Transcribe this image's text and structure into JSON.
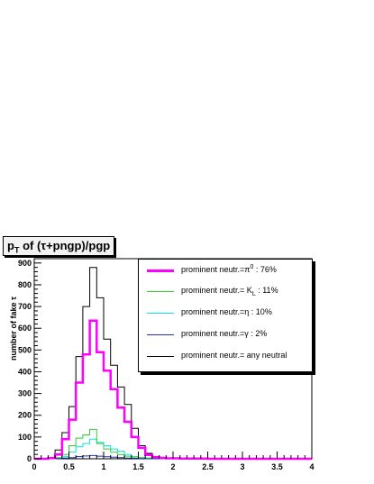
{
  "title": {
    "prefix": "p",
    "subscript": "T",
    "suffix": " of (τ+pngp)/pgp"
  },
  "chart_data": {
    "type": "line",
    "style": "step histogram",
    "title": "pT of (τ+pngp)/pgp",
    "xlabel": "",
    "ylabel": "number of fake τ",
    "xlim": [
      0,
      4
    ],
    "ylim": [
      0,
      920
    ],
    "bin_width": 0.1,
    "x_bin_edges_start": 0,
    "xticks": [
      "0",
      "0.5",
      "1",
      "1.5",
      "2",
      "2.5",
      "3",
      "3.5",
      "4"
    ],
    "yticks": [
      "0",
      "100",
      "200",
      "300",
      "400",
      "500",
      "600",
      "700",
      "800",
      "900"
    ],
    "grid": false,
    "legend_position": "top-right",
    "series": [
      {
        "name": "prominent neutr.= any neutral",
        "color": "#000000",
        "values": [
          0,
          0,
          5,
          40,
          120,
          240,
          470,
          700,
          880,
          740,
          550,
          430,
          330,
          250,
          140,
          60,
          25,
          10,
          5,
          3,
          3,
          2,
          1,
          1,
          1,
          1,
          0,
          0,
          0,
          0,
          0,
          0,
          0,
          0,
          0,
          0,
          0,
          0,
          0,
          0
        ]
      },
      {
        "name": "prominent neutr.=π⁰ : 76%",
        "color": "#ff00ff",
        "values": [
          0,
          0,
          3,
          20,
          90,
          180,
          350,
          480,
          635,
          490,
          405,
          320,
          235,
          170,
          100,
          50,
          18,
          8,
          4,
          2,
          2,
          1,
          1,
          1,
          1,
          0,
          0,
          0,
          0,
          0,
          0,
          0,
          0,
          0,
          0,
          0,
          0,
          0,
          0,
          0
        ]
      },
      {
        "name": "prominent neutr.= K_L : 11%",
        "color": "#33cc33",
        "values": [
          0,
          0,
          0,
          5,
          20,
          60,
          95,
          110,
          135,
          70,
          45,
          30,
          20,
          12,
          8,
          5,
          3,
          1,
          0,
          0,
          0,
          0,
          0,
          0,
          0,
          0,
          0,
          0,
          0,
          0,
          0,
          0,
          0,
          0,
          0,
          0,
          0,
          0,
          0,
          0
        ]
      },
      {
        "name": "prominent neutr.=η : 10%",
        "color": "#00e5e5",
        "values": [
          0,
          0,
          0,
          3,
          10,
          30,
          55,
          70,
          90,
          75,
          60,
          45,
          35,
          20,
          10,
          5,
          2,
          1,
          0,
          0,
          0,
          0,
          0,
          0,
          0,
          0,
          0,
          0,
          0,
          0,
          0,
          0,
          0,
          0,
          0,
          0,
          0,
          0,
          0,
          0
        ]
      },
      {
        "name": "prominent neutr.=γ : 2%",
        "color": "#2233aa",
        "values": [
          0,
          0,
          0,
          1,
          3,
          5,
          10,
          13,
          15,
          12,
          9,
          7,
          5,
          3,
          2,
          1,
          0,
          0,
          0,
          0,
          0,
          0,
          0,
          0,
          0,
          0,
          0,
          0,
          0,
          0,
          0,
          0,
          0,
          0,
          0,
          0,
          0,
          0,
          0,
          0
        ]
      }
    ]
  },
  "legend": {
    "items": [
      {
        "pre": "prominent neutr.=π",
        "sup": "0",
        "post": " : 76%",
        "color": "#ff00ff",
        "thick": true
      },
      {
        "pre": "prominent neutr.= K",
        "sub": "L",
        "post": " : 11%",
        "color": "#33cc33",
        "thick": false
      },
      {
        "pre": "prominent neutr.=η : 10%",
        "color": "#00e5e5",
        "thick": false
      },
      {
        "pre": "prominent neutr.=γ : 2%",
        "color": "#2233aa",
        "thick": false
      },
      {
        "pre": "prominent neutr.= any neutral",
        "color": "#000000",
        "thick": false
      }
    ]
  }
}
